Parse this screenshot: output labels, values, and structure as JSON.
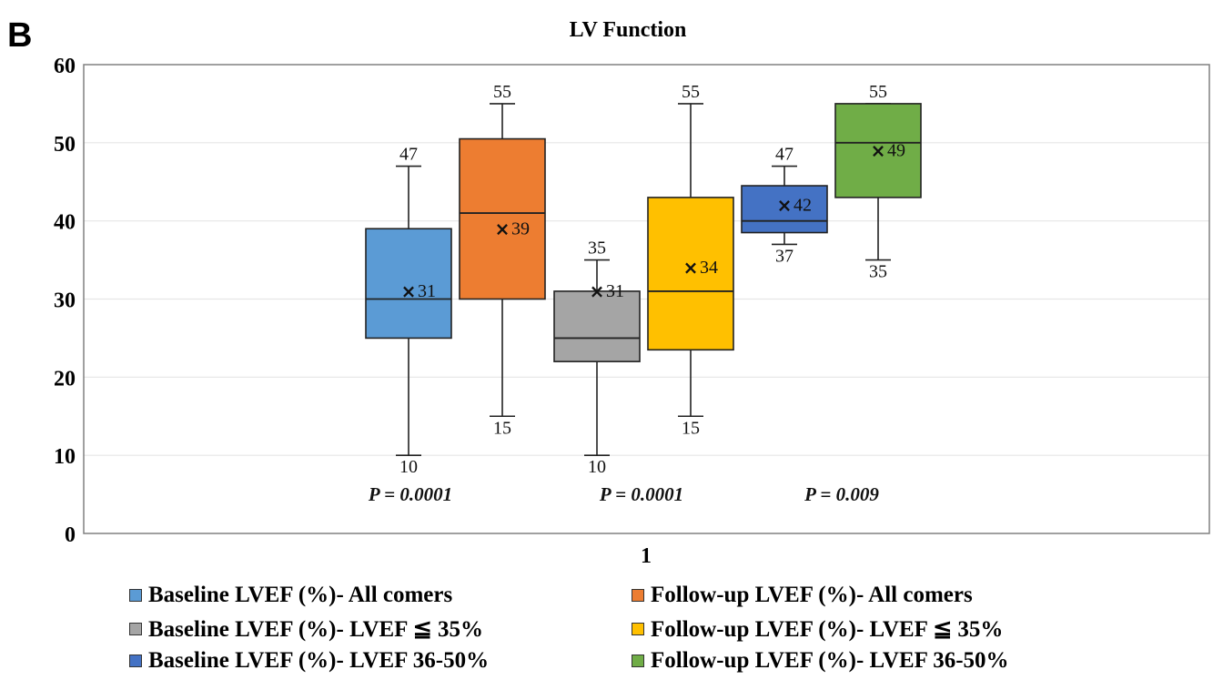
{
  "panel_label": "B",
  "chart_data": {
    "type": "box",
    "title": "LV Function",
    "xlabel": "1",
    "ylabel": "",
    "ylim": [
      0,
      60
    ],
    "yticks": [
      0,
      10,
      20,
      30,
      40,
      50,
      60
    ],
    "grid": true,
    "legend_position": "bottom",
    "series": [
      {
        "name": "Baseline LVEF (%)- All comers",
        "color": "#5b9bd5",
        "min": 10,
        "q1": 25,
        "median": 30,
        "q3": 39,
        "max": 47,
        "mean": 31,
        "min_label": "10",
        "max_label": "47",
        "mean_label": "31"
      },
      {
        "name": "Follow-up LVEF (%)- All comers",
        "color": "#ed7d31",
        "min": 15,
        "q1": 30,
        "median": 41,
        "q3": 50.5,
        "max": 55,
        "mean": 39,
        "min_label": "15",
        "max_label": "55",
        "mean_label": "39"
      },
      {
        "name": "Baseline LVEF (%)- LVEF ≦ 35%",
        "color": "#a5a5a5",
        "min": 10,
        "q1": 22,
        "median": 25,
        "q3": 31,
        "max": 35,
        "mean": 31,
        "min_label": "10",
        "max_label": "35",
        "mean_label": "31"
      },
      {
        "name": "Follow-up LVEF (%)- LVEF ≦ 35%",
        "color": "#ffc000",
        "min": 15,
        "q1": 23.5,
        "median": 31,
        "q3": 43,
        "max": 55,
        "mean": 34,
        "min_label": "15",
        "max_label": "55",
        "mean_label": "34"
      },
      {
        "name": "Baseline LVEF (%)- LVEF 36-50%",
        "color": "#4472c4",
        "min": 37,
        "q1": 38.5,
        "median": 40,
        "q3": 44.5,
        "max": 47,
        "mean": 42,
        "min_label": "37",
        "max_label": "47",
        "mean_label": "42"
      },
      {
        "name": "Follow-up LVEF (%)- LVEF 36-50%",
        "color": "#70ad47",
        "min": 35,
        "q1": 43,
        "median": 50,
        "q3": 55,
        "max": 55,
        "mean": 49,
        "min_label": "35",
        "max_label": "55",
        "mean_label": "49"
      }
    ],
    "annotations": [
      "P = 0.0001",
      "P = 0.0001",
      "P = 0.009"
    ]
  }
}
